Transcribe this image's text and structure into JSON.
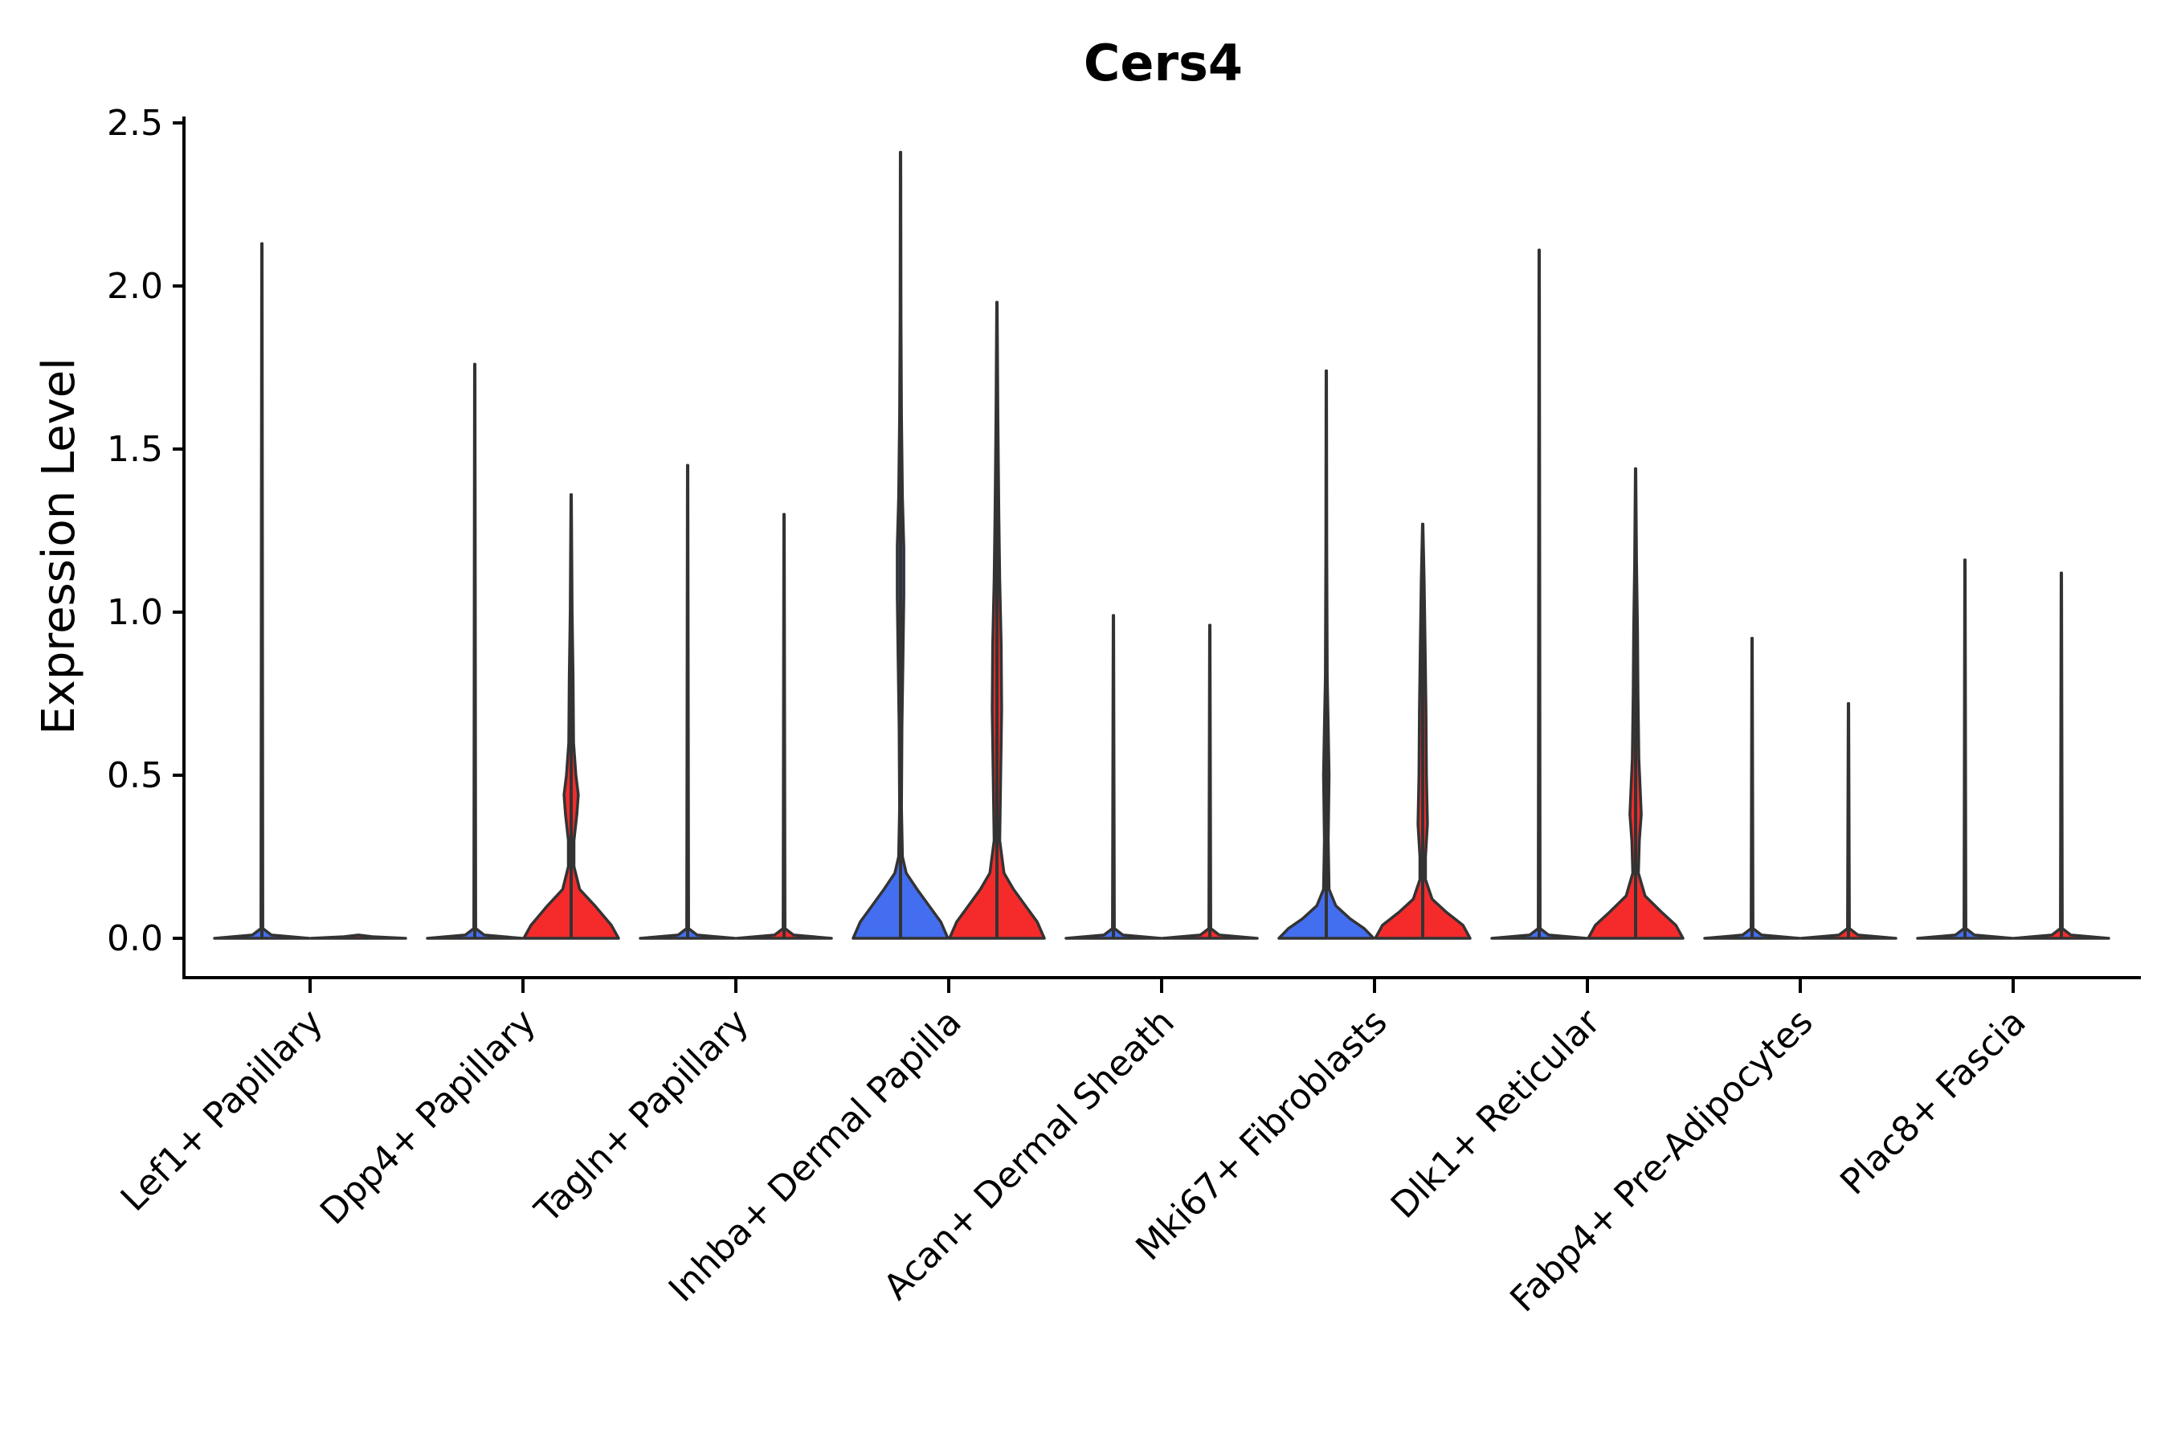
{
  "chart_data": {
    "type": "violin",
    "title": "Cers4",
    "xlabel": "",
    "ylabel": "Expression Level",
    "ylim": [
      -0.12,
      2.55
    ],
    "yticks": [
      "0.0",
      "0.5",
      "1.0",
      "1.5",
      "2.0",
      "2.5"
    ],
    "ytick_values": [
      0,
      0.5,
      1.0,
      1.5,
      2.0,
      2.5
    ],
    "grid": false,
    "legend": "none",
    "colors": {
      "group_a": "#436ef0",
      "group_b": "#f52b2b",
      "outline": "#333333"
    },
    "categories": [
      "Lef1+ Papillary",
      "Dpp4+ Papillary",
      "Tagln+ Papillary",
      "Inhba+ Dermal Papilla",
      "Acan+ Dermal Sheath",
      "Mki67+ Fibroblasts",
      "Dlk1+ Reticular",
      "Fabp4+ Pre-Adipocytes",
      "Plac8+ Fascia"
    ],
    "violins": [
      {
        "category": "Lef1+ Papillary",
        "group": "a",
        "max": 2.13,
        "profile": [
          [
            0,
            1.0
          ],
          [
            0.01,
            0.2
          ],
          [
            0.03,
            0.02
          ],
          [
            2.13,
            0.005
          ]
        ]
      },
      {
        "category": "Lef1+ Papillary",
        "group": "b",
        "max": 0.0,
        "profile": [
          [
            0,
            1.0
          ],
          [
            0.005,
            0.3
          ],
          [
            0.01,
            0.0
          ]
        ]
      },
      {
        "category": "Dpp4+ Papillary",
        "group": "a",
        "max": 1.76,
        "profile": [
          [
            0,
            1.0
          ],
          [
            0.01,
            0.2
          ],
          [
            0.03,
            0.02
          ],
          [
            1.76,
            0.005
          ]
        ]
      },
      {
        "category": "Dpp4+ Papillary",
        "group": "b",
        "max": 1.36,
        "profile": [
          [
            0,
            1.0
          ],
          [
            0.04,
            0.85
          ],
          [
            0.1,
            0.5
          ],
          [
            0.15,
            0.18
          ],
          [
            0.22,
            0.06
          ],
          [
            0.3,
            0.06
          ],
          [
            0.38,
            0.12
          ],
          [
            0.44,
            0.15
          ],
          [
            0.5,
            0.1
          ],
          [
            0.6,
            0.05
          ],
          [
            0.8,
            0.04
          ],
          [
            1.0,
            0.02
          ],
          [
            1.36,
            0.005
          ]
        ]
      },
      {
        "category": "Tagln+ Papillary",
        "group": "a",
        "max": 1.45,
        "profile": [
          [
            0,
            1.0
          ],
          [
            0.01,
            0.2
          ],
          [
            0.03,
            0.02
          ],
          [
            1.45,
            0.005
          ]
        ]
      },
      {
        "category": "Tagln+ Papillary",
        "group": "b",
        "max": 1.3,
        "profile": [
          [
            0,
            1.0
          ],
          [
            0.01,
            0.2
          ],
          [
            0.03,
            0.02
          ],
          [
            1.3,
            0.005
          ]
        ]
      },
      {
        "category": "Inhba+ Dermal Papilla",
        "group": "a",
        "max": 2.41,
        "profile": [
          [
            0,
            1.0
          ],
          [
            0.05,
            0.85
          ],
          [
            0.1,
            0.6
          ],
          [
            0.15,
            0.35
          ],
          [
            0.2,
            0.12
          ],
          [
            0.25,
            0.04
          ],
          [
            0.4,
            0.02
          ],
          [
            0.65,
            0.03
          ],
          [
            0.85,
            0.05
          ],
          [
            1.05,
            0.07
          ],
          [
            1.2,
            0.07
          ],
          [
            1.35,
            0.04
          ],
          [
            1.6,
            0.02
          ],
          [
            1.9,
            0.01
          ],
          [
            2.41,
            0.005
          ]
        ]
      },
      {
        "category": "Inhba+ Dermal Papilla",
        "group": "b",
        "max": 1.95,
        "profile": [
          [
            0,
            1.0
          ],
          [
            0.05,
            0.85
          ],
          [
            0.1,
            0.6
          ],
          [
            0.15,
            0.35
          ],
          [
            0.2,
            0.15
          ],
          [
            0.3,
            0.06
          ],
          [
            0.5,
            0.08
          ],
          [
            0.7,
            0.1
          ],
          [
            0.9,
            0.09
          ],
          [
            1.1,
            0.06
          ],
          [
            1.3,
            0.04
          ],
          [
            1.6,
            0.02
          ],
          [
            1.95,
            0.005
          ]
        ]
      },
      {
        "category": "Acan+ Dermal Sheath",
        "group": "a",
        "max": 0.99,
        "profile": [
          [
            0,
            1.0
          ],
          [
            0.01,
            0.2
          ],
          [
            0.03,
            0.02
          ],
          [
            0.99,
            0.005
          ]
        ]
      },
      {
        "category": "Acan+ Dermal Sheath",
        "group": "b",
        "max": 0.96,
        "profile": [
          [
            0,
            1.0
          ],
          [
            0.01,
            0.2
          ],
          [
            0.03,
            0.02
          ],
          [
            0.96,
            0.005
          ]
        ]
      },
      {
        "category": "Mki67+ Fibroblasts",
        "group": "a",
        "max": 1.74,
        "profile": [
          [
            0,
            1.0
          ],
          [
            0.03,
            0.8
          ],
          [
            0.06,
            0.5
          ],
          [
            0.1,
            0.2
          ],
          [
            0.15,
            0.06
          ],
          [
            0.3,
            0.04
          ],
          [
            0.5,
            0.06
          ],
          [
            0.65,
            0.04
          ],
          [
            0.8,
            0.02
          ],
          [
            1.2,
            0.01
          ],
          [
            1.74,
            0.005
          ]
        ]
      },
      {
        "category": "Mki67+ Fibroblasts",
        "group": "b",
        "max": 1.27,
        "profile": [
          [
            0,
            1.0
          ],
          [
            0.04,
            0.85
          ],
          [
            0.08,
            0.5
          ],
          [
            0.12,
            0.2
          ],
          [
            0.18,
            0.06
          ],
          [
            0.25,
            0.06
          ],
          [
            0.35,
            0.1
          ],
          [
            0.5,
            0.08
          ],
          [
            0.7,
            0.07
          ],
          [
            0.9,
            0.05
          ],
          [
            1.1,
            0.03
          ],
          [
            1.27,
            0.005
          ]
        ]
      },
      {
        "category": "Dlk1+ Reticular",
        "group": "a",
        "max": 2.11,
        "profile": [
          [
            0,
            1.0
          ],
          [
            0.01,
            0.2
          ],
          [
            0.03,
            0.02
          ],
          [
            2.11,
            0.005
          ]
        ]
      },
      {
        "category": "Dlk1+ Reticular",
        "group": "b",
        "max": 1.44,
        "profile": [
          [
            0,
            1.0
          ],
          [
            0.04,
            0.85
          ],
          [
            0.08,
            0.55
          ],
          [
            0.13,
            0.2
          ],
          [
            0.2,
            0.06
          ],
          [
            0.3,
            0.08
          ],
          [
            0.38,
            0.12
          ],
          [
            0.45,
            0.1
          ],
          [
            0.55,
            0.07
          ],
          [
            0.75,
            0.05
          ],
          [
            0.95,
            0.04
          ],
          [
            1.15,
            0.02
          ],
          [
            1.44,
            0.005
          ]
        ]
      },
      {
        "category": "Fabp4+ Pre-Adipocytes",
        "group": "a",
        "max": 0.92,
        "profile": [
          [
            0,
            1.0
          ],
          [
            0.01,
            0.2
          ],
          [
            0.03,
            0.02
          ],
          [
            0.92,
            0.005
          ]
        ]
      },
      {
        "category": "Fabp4+ Pre-Adipocytes",
        "group": "b",
        "max": 0.72,
        "profile": [
          [
            0,
            1.0
          ],
          [
            0.01,
            0.2
          ],
          [
            0.03,
            0.02
          ],
          [
            0.72,
            0.005
          ]
        ]
      },
      {
        "category": "Plac8+ Fascia",
        "group": "a",
        "max": 1.16,
        "profile": [
          [
            0,
            1.0
          ],
          [
            0.01,
            0.2
          ],
          [
            0.03,
            0.02
          ],
          [
            1.16,
            0.005
          ]
        ]
      },
      {
        "category": "Plac8+ Fascia",
        "group": "b",
        "max": 1.12,
        "profile": [
          [
            0,
            1.0
          ],
          [
            0.01,
            0.2
          ],
          [
            0.03,
            0.02
          ],
          [
            1.12,
            0.005
          ]
        ]
      }
    ]
  }
}
